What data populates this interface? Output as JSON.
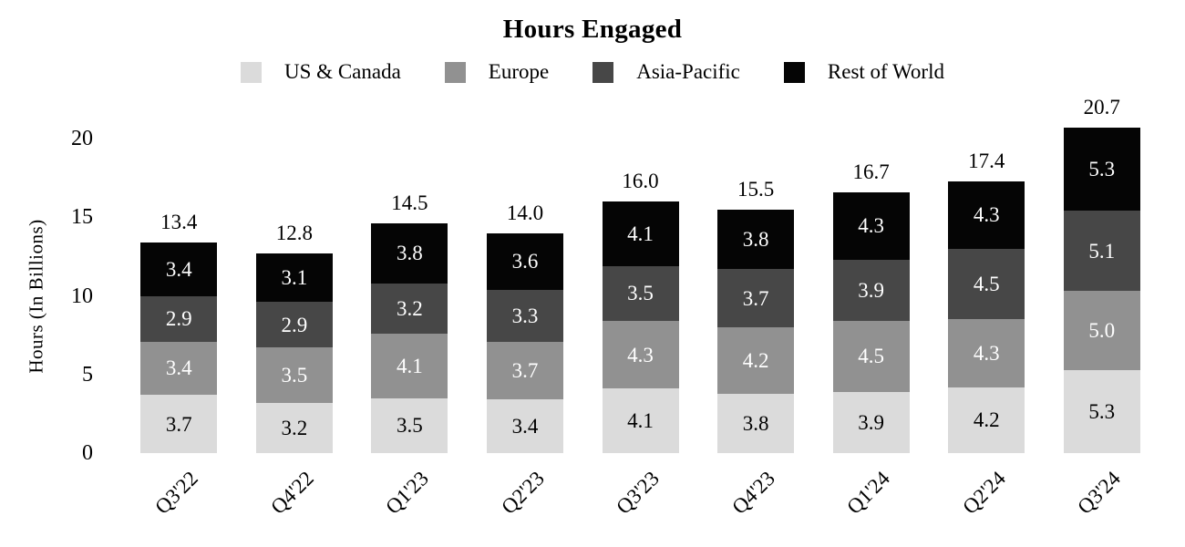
{
  "chart_data": {
    "type": "bar",
    "stacked": true,
    "title": "Hours Engaged",
    "ylabel": "Hours (In Billions)",
    "xlabel": "",
    "categories": [
      "Q3'22",
      "Q4'22",
      "Q1'23",
      "Q2'23",
      "Q3'23",
      "Q4'23",
      "Q1'24",
      "Q2'24",
      "Q3'24"
    ],
    "series": [
      {
        "name": "US & Canada",
        "color": "#dbdbdb",
        "label_color": "#000000",
        "values": [
          3.7,
          3.2,
          3.5,
          3.4,
          4.1,
          3.8,
          3.9,
          4.2,
          5.3
        ]
      },
      {
        "name": "Europe",
        "color": "#919191",
        "label_color": "#ffffff",
        "values": [
          3.4,
          3.5,
          4.1,
          3.7,
          4.3,
          4.2,
          4.5,
          4.3,
          5.0
        ]
      },
      {
        "name": "Asia-Pacific",
        "color": "#474747",
        "label_color": "#ffffff",
        "values": [
          2.9,
          2.9,
          3.2,
          3.3,
          3.5,
          3.7,
          3.9,
          4.5,
          5.1
        ]
      },
      {
        "name": "Rest of World",
        "color": "#050505",
        "label_color": "#ffffff",
        "values": [
          3.4,
          3.1,
          3.8,
          3.6,
          4.1,
          3.8,
          4.3,
          4.3,
          5.3
        ]
      }
    ],
    "totals": [
      "13.4",
      "12.8",
      "14.5",
      "14.0",
      "16.0",
      "15.5",
      "16.7",
      "17.4",
      "20.7"
    ],
    "y_ticks": [
      0,
      5,
      10,
      15,
      20
    ],
    "ylim": [
      0,
      20
    ],
    "legend_position": "top",
    "grid": false
  }
}
